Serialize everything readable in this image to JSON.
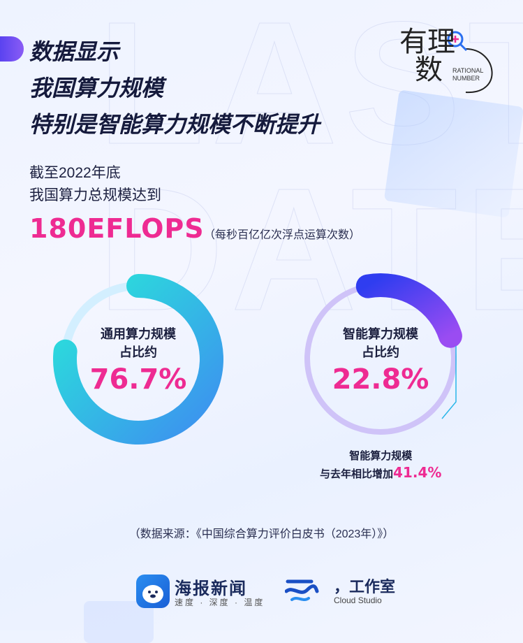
{
  "background_letters": "LAST\nDATE",
  "headline": [
    "数据显示",
    "我国算力规模",
    "特别是智能算力规模不断提升"
  ],
  "logo": {
    "chars": "有理\n数",
    "sub": "RATIONAL\nNUMBER"
  },
  "intro": {
    "line1": "截至2022年底",
    "line2": "我国算力总规模达到"
  },
  "total": {
    "value": "180EFLOPS",
    "note": "（每秒百亿亿次浮点运算次数）"
  },
  "general": {
    "label1": "通用算力规模",
    "label2": "占比约",
    "pct_text": "76.7%",
    "pct": 76.7,
    "color_start": "#29e6d9",
    "color_end": "#3d8ff0"
  },
  "intelligent": {
    "label1": "智能算力规模",
    "label2": "占比约",
    "pct_text": "22.8%",
    "pct": 22.8,
    "color_start": "#2f3df0",
    "color_end": "#9a4cf2"
  },
  "growth": {
    "line1": "智能算力规模",
    "line2": "与去年相比增加",
    "pct_text": "41.4%"
  },
  "source": "（数据来源：《中国综合算力评价白皮书（2023年）》）",
  "footer": {
    "brand1": "海报新闻",
    "brand1_sub": "速度 · 深度 · 温度",
    "brand2": "，工作室",
    "brand2_sub": "Cloud Studio"
  }
}
